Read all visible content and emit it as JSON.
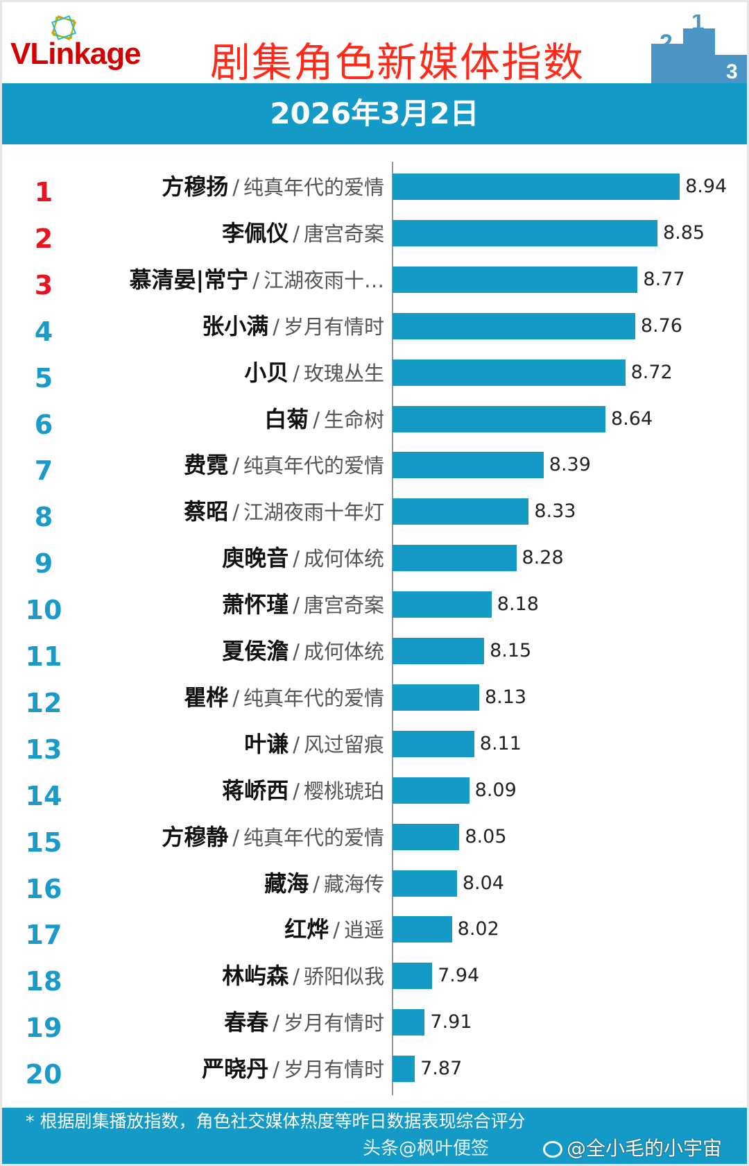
{
  "header": {
    "logo_text": "VLinkage",
    "title": "剧集角色新媒体指数",
    "date": "2026年3月2日"
  },
  "colors": {
    "bar": "#149ac7",
    "top3_rank": "#e8141f",
    "rank": "#1a9ac9",
    "title": "#ff2a1a"
  },
  "chart_data": {
    "type": "bar",
    "orientation": "horizontal",
    "categories": [
      "方穆扬",
      "李佩仪",
      "慕清晏|常宁",
      "张小满",
      "小贝",
      "白菊",
      "费霓",
      "蔡昭",
      "庾晚音",
      "萧怀瑾",
      "夏侯澹",
      "瞿桦",
      "叶谦",
      "蒋峤西",
      "方穆静",
      "藏海",
      "红烨",
      "林屿森",
      "春春",
      "严晓丹"
    ],
    "shows": [
      "纯真年代的爱情",
      "唐宫奇案",
      "江湖夜雨十…",
      "岁月有情时",
      "玫瑰丛生",
      "生命树",
      "纯真年代的爱情",
      "江湖夜雨十年灯",
      "成何体统",
      "唐宫奇案",
      "成何体统",
      "纯真年代的爱情",
      "风过留痕",
      "樱桃琥珀",
      "纯真年代的爱情",
      "藏海传",
      "逍遥",
      "骄阳似我",
      "岁月有情时",
      "岁月有情时"
    ],
    "ranks": [
      "1",
      "2",
      "3",
      "4",
      "5",
      "6",
      "7",
      "8",
      "9",
      "10",
      "11",
      "12",
      "13",
      "14",
      "15",
      "16",
      "17",
      "18",
      "19",
      "20"
    ],
    "values": [
      8.94,
      8.85,
      8.77,
      8.76,
      8.72,
      8.64,
      8.39,
      8.33,
      8.28,
      8.18,
      8.15,
      8.13,
      8.11,
      8.09,
      8.05,
      8.04,
      8.02,
      7.94,
      7.91,
      7.87
    ],
    "value_labels": [
      "8.94",
      "8.85",
      "8.77",
      "8.76",
      "8.72",
      "8.64",
      "8.39",
      "8.33",
      "8.28",
      "8.18",
      "8.15",
      "8.13",
      "8.11",
      "8.09",
      "8.05",
      "8.04",
      "8.02",
      "7.94",
      "7.91",
      "7.87"
    ],
    "separator": "/",
    "grid": false
  },
  "footer": {
    "note": "* 根据剧集播放指数，角色社交媒体热度等昨日数据表现综合评分",
    "watermark_1": "头条@枫叶便签",
    "watermark_2": "@全小毛的小宇宙"
  }
}
